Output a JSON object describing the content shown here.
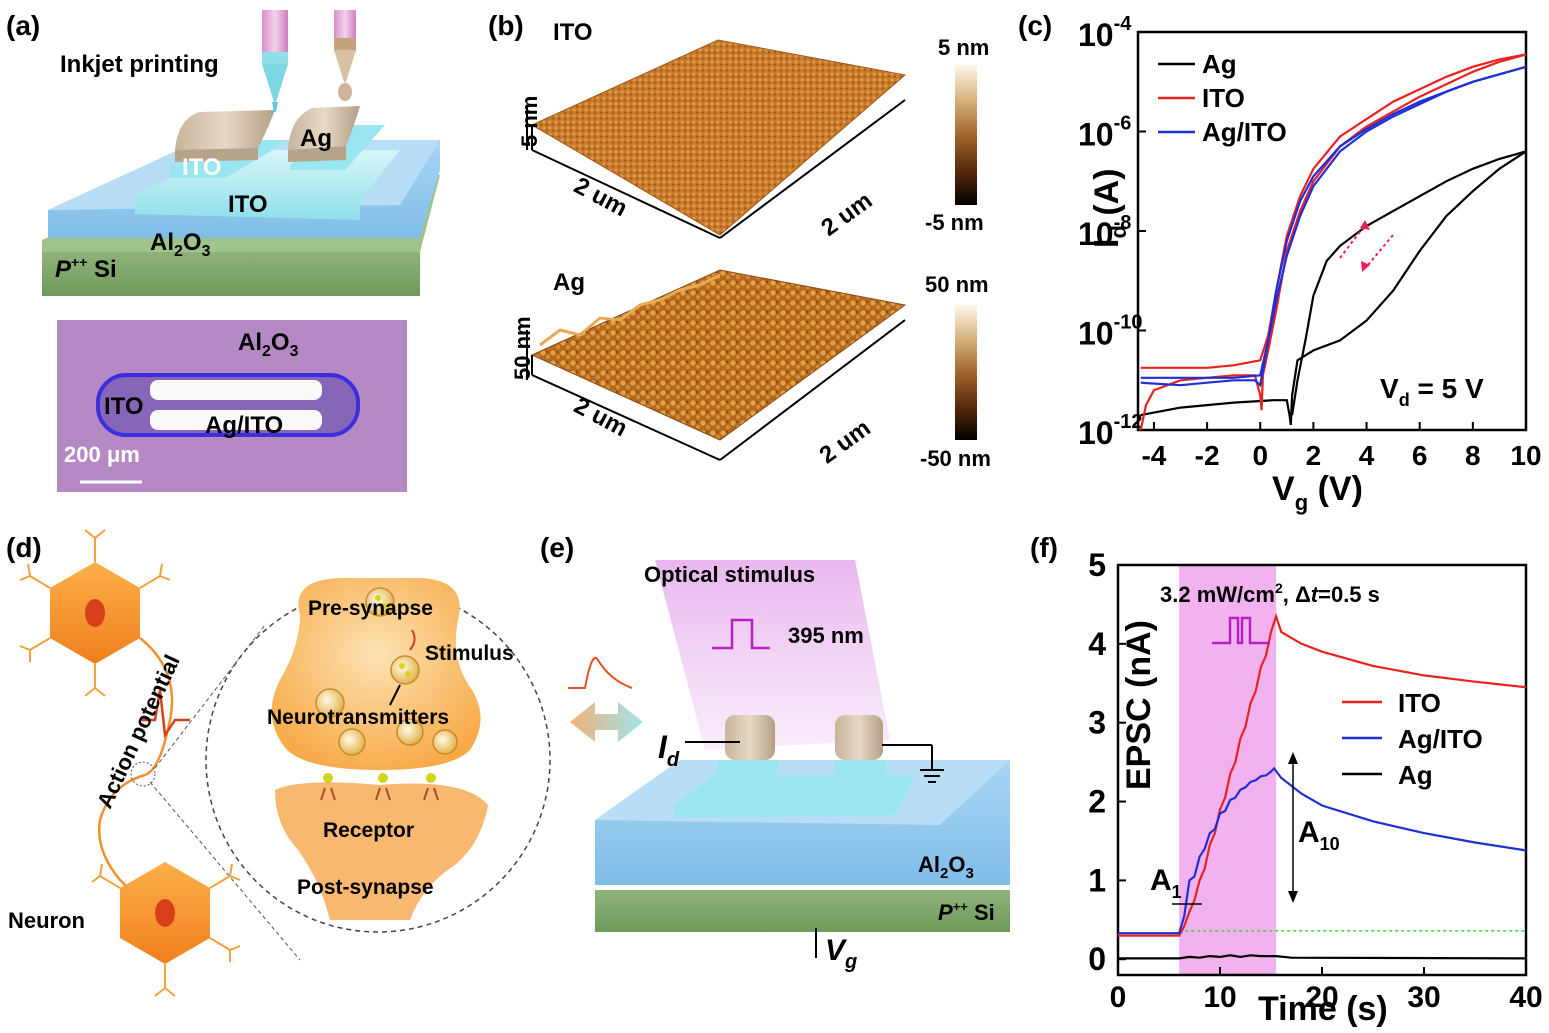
{
  "panels": {
    "a": {
      "label": "(a)",
      "inkjet": "Inkjet printing",
      "ito1": "ITO",
      "ag": "Ag",
      "ito2": "ITO",
      "al2o3": "Al",
      "al2o3_sub": "2",
      "al2o3_o": "O",
      "al2o3_sub2": "3",
      "psi_p": "P",
      "psi_sup": "++",
      "psi_si": " Si",
      "micro": {
        "al2o3": "Al",
        "al2o3_sub": "2",
        "al2o3_o": "O",
        "al2o3_sub2": "3",
        "ito": "ITO",
        "agito": "Ag/ITO",
        "scale": "200 μm"
      }
    },
    "b": {
      "label": "(b)",
      "ito": "ITO",
      "ag": "Ag",
      "z_ito": "5 nm",
      "z_ag": "50 nm",
      "x1": "2 um",
      "x2": "2 um",
      "x3": "2 um",
      "x4": "2 um",
      "cb_ito_top": "5 nm",
      "cb_ito_bot": "-5 nm",
      "cb_ag_top": "50 nm",
      "cb_ag_bot": "-50 nm"
    },
    "d": {
      "label": "(d)",
      "action": "Action potential",
      "pre": "Pre-synapse",
      "stimulus": "Stimulus",
      "neuro": "Neurotransmitters",
      "receptor": "Receptor",
      "post": "Post-synapse",
      "neuron": "Neuron"
    },
    "e": {
      "label": "(e)",
      "optical": "Optical stimulus",
      "wavelength": "395 nm",
      "id": "I",
      "id_sub": "d",
      "al2o3": "Al",
      "al2o3_sub": "2",
      "al2o3_o": "O",
      "al2o3_sub2": "3",
      "psi_p": "P",
      "psi_sup": "++",
      "psi_si": " Si",
      "vg": "V",
      "vg_sub": "g"
    }
  },
  "chart_data": [
    {
      "id": "c",
      "label": "(c)",
      "type": "line",
      "xlabel": "V",
      "xlabel_sub": "g",
      "xlabel_unit": " (V)",
      "ylabel": "I",
      "ylabel_sub": "d",
      "ylabel_unit": " (A)",
      "yscale": "log",
      "xlim": [
        -4.6,
        10
      ],
      "ylim_exp": [
        -12,
        -4
      ],
      "xticks": [
        -4,
        -2,
        0,
        2,
        4,
        6,
        8,
        10
      ],
      "xtick_labels": [
        "-4",
        "-2",
        "0",
        "2",
        "4",
        "6",
        "8",
        "10"
      ],
      "yticks_exp": [
        -12,
        -10,
        -8,
        -6,
        -4
      ],
      "ytick_base": "10",
      "ytick_exps": [
        "-12",
        "-10",
        "-8",
        "-6",
        "-4"
      ],
      "annotation": "V",
      "annotation_sub": "d",
      "annotation_rest": " = 5 V",
      "legend_position": "top-left",
      "series": [
        {
          "name": "Ag",
          "color": "#000000",
          "fwd": [
            [
              -4.5,
              -11.7
            ],
            [
              -3,
              -11.55
            ],
            [
              -1,
              -11.45
            ],
            [
              0.5,
              -11.4
            ],
            [
              1.0,
              -11.4
            ],
            [
              1.1,
              -11.7
            ],
            [
              1.15,
              -11.9
            ],
            [
              1.2,
              -11.3
            ],
            [
              1.4,
              -10.6
            ],
            [
              2,
              -10.4
            ],
            [
              3,
              -10.2
            ],
            [
              4,
              -9.8
            ],
            [
              5,
              -9.2
            ],
            [
              6,
              -8.4
            ],
            [
              7,
              -7.7
            ],
            [
              8,
              -7.2
            ],
            [
              9,
              -6.75
            ],
            [
              10,
              -6.4
            ]
          ],
          "rev": [
            [
              10,
              -6.4
            ],
            [
              9,
              -6.55
            ],
            [
              8,
              -6.75
            ],
            [
              7,
              -7.0
            ],
            [
              6,
              -7.3
            ],
            [
              5,
              -7.6
            ],
            [
              4,
              -7.9
            ],
            [
              3,
              -8.3
            ],
            [
              2.5,
              -8.6
            ],
            [
              2,
              -9.3
            ],
            [
              1.7,
              -10.2
            ],
            [
              1.4,
              -11.0
            ],
            [
              1.2,
              -11.7
            ]
          ]
        },
        {
          "name": "ITO",
          "color": "#e8231f",
          "fwd": [
            [
              -4.5,
              -12.0
            ],
            [
              -4.3,
              -11.5
            ],
            [
              -4,
              -11.2
            ],
            [
              -3,
              -11.0
            ],
            [
              -2,
              -10.95
            ],
            [
              -1,
              -10.9
            ],
            [
              -0.2,
              -10.9
            ],
            [
              0,
              -11.3
            ],
            [
              0.05,
              -11.6
            ],
            [
              0.1,
              -10.9
            ],
            [
              0.3,
              -10.4
            ],
            [
              0.6,
              -9.6
            ],
            [
              1,
              -8.4
            ],
            [
              1.5,
              -7.6
            ],
            [
              2,
              -7.0
            ],
            [
              3,
              -6.3
            ],
            [
              4,
              -5.9
            ],
            [
              5,
              -5.6
            ],
            [
              6,
              -5.3
            ],
            [
              7,
              -5.05
            ],
            [
              8,
              -4.8
            ],
            [
              9,
              -4.6
            ],
            [
              10,
              -4.45
            ]
          ],
          "rev": [
            [
              10,
              -4.45
            ],
            [
              9,
              -4.55
            ],
            [
              8,
              -4.7
            ],
            [
              7,
              -4.9
            ],
            [
              6,
              -5.15
            ],
            [
              5,
              -5.4
            ],
            [
              4,
              -5.75
            ],
            [
              3,
              -6.1
            ],
            [
              2,
              -6.75
            ],
            [
              1.5,
              -7.3
            ],
            [
              1,
              -8.1
            ],
            [
              0.6,
              -9.2
            ],
            [
              0.3,
              -10.1
            ],
            [
              0,
              -10.6
            ],
            [
              -1,
              -10.7
            ],
            [
              -2,
              -10.75
            ],
            [
              -3,
              -10.75
            ],
            [
              -4.5,
              -10.75
            ]
          ]
        },
        {
          "name": "Ag/ITO",
          "color": "#1f2fd6",
          "fwd": [
            [
              -4.5,
              -11.05
            ],
            [
              -3,
              -11.1
            ],
            [
              -2,
              -11.05
            ],
            [
              -1,
              -11.0
            ],
            [
              -0.2,
              -11.0
            ],
            [
              0,
              -11.1
            ],
            [
              0.1,
              -10.8
            ],
            [
              0.3,
              -10.2
            ],
            [
              0.6,
              -9.4
            ],
            [
              1,
              -8.5
            ],
            [
              1.5,
              -7.7
            ],
            [
              2,
              -7.1
            ],
            [
              3,
              -6.4
            ],
            [
              4,
              -6.0
            ],
            [
              5,
              -5.7
            ],
            [
              6,
              -5.45
            ],
            [
              7,
              -5.2
            ],
            [
              8,
              -5.0
            ],
            [
              9,
              -4.85
            ],
            [
              10,
              -4.7
            ]
          ],
          "rev": [
            [
              10,
              -4.7
            ],
            [
              9,
              -4.85
            ],
            [
              8,
              -5.0
            ],
            [
              7,
              -5.2
            ],
            [
              6,
              -5.4
            ],
            [
              5,
              -5.65
            ],
            [
              4,
              -5.95
            ],
            [
              3,
              -6.3
            ],
            [
              2,
              -6.9
            ],
            [
              1.5,
              -7.4
            ],
            [
              1,
              -8.2
            ],
            [
              0.6,
              -9.2
            ],
            [
              0.3,
              -10.2
            ],
            [
              0,
              -10.9
            ],
            [
              -1,
              -10.95
            ],
            [
              -2,
              -10.95
            ],
            [
              -4.5,
              -10.95
            ]
          ]
        }
      ]
    },
    {
      "id": "f",
      "label": "(f)",
      "type": "line",
      "xlabel": "Time (s)",
      "ylabel": "EPSC (nA)",
      "xlim": [
        0,
        40
      ],
      "ylim": [
        -0.2,
        5
      ],
      "xticks": [
        0,
        10,
        20,
        30,
        40
      ],
      "xtick_labels": [
        "0",
        "10",
        "20",
        "30",
        "40"
      ],
      "yticks": [
        0,
        1,
        2,
        3,
        4,
        5
      ],
      "ytick_labels": [
        "0",
        "1",
        "2",
        "3",
        "4",
        "5"
      ],
      "light_window": [
        6,
        15.5
      ],
      "condition": "3.2 mW/cm",
      "condition_sup": "2",
      "condition_rest": ", Δ",
      "condition_t": "t",
      "condition_end": "=0.5 s",
      "a1": "A",
      "a1_sub": "1",
      "a10": "A",
      "a10_sub": "10",
      "legend_position": "right",
      "series": [
        {
          "name": "ITO",
          "color": "#e8231f",
          "points": [
            [
              0,
              0.3
            ],
            [
              6,
              0.3
            ],
            [
              6.5,
              0.42
            ],
            [
              7,
              0.6
            ],
            [
              7.5,
              0.75
            ],
            [
              8,
              1.0
            ],
            [
              8.5,
              1.15
            ],
            [
              9,
              1.45
            ],
            [
              9.5,
              1.6
            ],
            [
              10,
              1.9
            ],
            [
              10.5,
              2.05
            ],
            [
              11,
              2.35
            ],
            [
              11.5,
              2.5
            ],
            [
              12,
              2.8
            ],
            [
              12.5,
              2.95
            ],
            [
              13,
              3.25
            ],
            [
              13.5,
              3.4
            ],
            [
              14,
              3.7
            ],
            [
              14.5,
              3.85
            ],
            [
              15,
              4.15
            ],
            [
              15.5,
              4.35
            ],
            [
              16,
              4.15
            ],
            [
              18,
              4.0
            ],
            [
              20,
              3.9
            ],
            [
              25,
              3.72
            ],
            [
              30,
              3.6
            ],
            [
              35,
              3.52
            ],
            [
              40,
              3.45
            ]
          ]
        },
        {
          "name": "Ag/ITO",
          "color": "#1f2fd6",
          "points": [
            [
              0,
              0.33
            ],
            [
              6,
              0.33
            ],
            [
              6.5,
              0.55
            ],
            [
              7,
              1.0
            ],
            [
              7.5,
              1.05
            ],
            [
              8,
              1.3
            ],
            [
              8.5,
              1.4
            ],
            [
              9,
              1.6
            ],
            [
              9.5,
              1.65
            ],
            [
              10,
              1.85
            ],
            [
              10.5,
              1.88
            ],
            [
              11,
              2.02
            ],
            [
              11.5,
              2.05
            ],
            [
              12,
              2.15
            ],
            [
              12.5,
              2.18
            ],
            [
              13,
              2.25
            ],
            [
              13.5,
              2.27
            ],
            [
              14,
              2.32
            ],
            [
              14.5,
              2.33
            ],
            [
              15,
              2.38
            ],
            [
              15.3,
              2.42
            ],
            [
              16,
              2.3
            ],
            [
              18,
              2.1
            ],
            [
              20,
              1.95
            ],
            [
              25,
              1.75
            ],
            [
              30,
              1.6
            ],
            [
              35,
              1.48
            ],
            [
              40,
              1.38
            ]
          ]
        },
        {
          "name": "Ag",
          "color": "#000000",
          "points": [
            [
              0,
              0.01
            ],
            [
              6,
              0.01
            ],
            [
              7,
              0.03
            ],
            [
              8,
              0.02
            ],
            [
              9,
              0.04
            ],
            [
              10,
              0.03
            ],
            [
              11,
              0.05
            ],
            [
              12,
              0.03
            ],
            [
              13,
              0.05
            ],
            [
              14,
              0.04
            ],
            [
              15.5,
              0.04
            ],
            [
              17,
              0.02
            ],
            [
              40,
              0.01
            ]
          ]
        }
      ],
      "baseline": {
        "value": 0.36,
        "color": "#3dd23d"
      }
    }
  ]
}
